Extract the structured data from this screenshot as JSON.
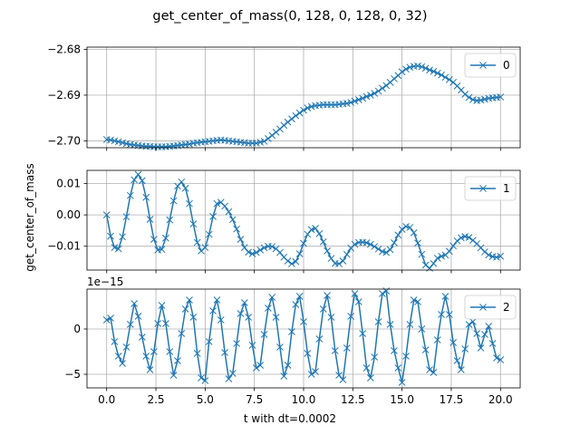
{
  "chart_data": {
    "type": "line",
    "title": "get_center_of_mass(0, 128, 0, 128, 0, 32)",
    "xlabel": "t with dt=0.0002",
    "ylabel": "get_center_of_mass",
    "xlim": [
      -1.0,
      21.0
    ],
    "grid": true,
    "legend_position": "top-right",
    "line_color": "#1f77b4",
    "marker": "x",
    "x_start": 0.0,
    "x_end": 20.0,
    "x_step": 0.2,
    "panels": [
      {
        "series_name": "0",
        "ylim": [
          -2.7015,
          -2.6795
        ],
        "yticks": [
          -2.7,
          -2.69,
          -2.68
        ],
        "ytick_labels": [
          "−2.70",
          "−2.69",
          "−2.68"
        ],
        "offset_text": "",
        "values": [
          -2.6997,
          -2.6998,
          -2.7,
          -2.7002,
          -2.7004,
          -2.7006,
          -2.7008,
          -2.7009,
          -2.701,
          -2.7011,
          -2.7012,
          -2.7012,
          -2.7013,
          -2.7013,
          -2.7013,
          -2.7013,
          -2.7012,
          -2.7011,
          -2.701,
          -2.7009,
          -2.7008,
          -2.7007,
          -2.7005,
          -2.7004,
          -2.7003,
          -2.7002,
          -2.7001,
          -2.7,
          -2.6999,
          -2.6998,
          -2.6999,
          -2.7,
          -2.7001,
          -2.7002,
          -2.7003,
          -2.7004,
          -2.7005,
          -2.7005,
          -2.7005,
          -2.7003,
          -2.7001,
          -2.6995,
          -2.6988,
          -2.6981,
          -2.6974,
          -2.6966,
          -2.6959,
          -2.6952,
          -2.6945,
          -2.6939,
          -2.6933,
          -2.6928,
          -2.6925,
          -2.6923,
          -2.6922,
          -2.6921,
          -2.6921,
          -2.6921,
          -2.6921,
          -2.692,
          -2.6919,
          -2.6918,
          -2.6916,
          -2.6913,
          -2.691,
          -2.6907,
          -2.6903,
          -2.69,
          -2.6896,
          -2.6891,
          -2.6885,
          -2.6879,
          -2.6872,
          -2.6864,
          -2.6857,
          -2.6849,
          -2.6843,
          -2.6839,
          -2.6837,
          -2.6836,
          -2.6838,
          -2.6841,
          -2.6845,
          -2.6848,
          -2.6852,
          -2.6856,
          -2.6861,
          -2.6866,
          -2.6872,
          -2.688,
          -2.6889,
          -2.6898,
          -2.6905,
          -2.691,
          -2.6912,
          -2.6911,
          -2.6909,
          -2.6907,
          -2.6906,
          -2.6905,
          -2.6904
        ]
      },
      {
        "series_name": "1",
        "ylim": [
          -0.0176,
          0.0142
        ],
        "yticks": [
          -0.01,
          0.0,
          0.01
        ],
        "ytick_labels": [
          "−0.01",
          "0.00",
          "0.01"
        ],
        "offset_text": "",
        "values": [
          0.0,
          -0.0068,
          -0.0104,
          -0.0108,
          -0.007,
          -0.0006,
          0.0062,
          0.0112,
          0.0129,
          0.0109,
          0.0056,
          -0.0014,
          -0.0078,
          -0.0112,
          -0.011,
          -0.0074,
          -0.0016,
          0.0045,
          0.0092,
          0.0105,
          0.0085,
          0.0036,
          -0.0029,
          -0.0088,
          -0.0115,
          -0.0104,
          -0.0062,
          -0.0005,
          0.0036,
          0.004,
          0.0028,
          0.001,
          -0.0015,
          -0.0045,
          -0.0078,
          -0.0104,
          -0.0119,
          -0.0124,
          -0.012,
          -0.0112,
          -0.0105,
          -0.01,
          -0.0101,
          -0.0108,
          -0.012,
          -0.0135,
          -0.0147,
          -0.0156,
          -0.0149,
          -0.0124,
          -0.0091,
          -0.0062,
          -0.0047,
          -0.0043,
          -0.006,
          -0.0086,
          -0.0115,
          -0.0139,
          -0.0155,
          -0.0156,
          -0.0147,
          -0.0126,
          -0.0106,
          -0.0094,
          -0.0088,
          -0.0087,
          -0.0089,
          -0.0094,
          -0.0101,
          -0.0109,
          -0.0117,
          -0.012,
          -0.0111,
          -0.0089,
          -0.0064,
          -0.0046,
          -0.0037,
          -0.004,
          -0.0057,
          -0.009,
          -0.0126,
          -0.016,
          -0.017,
          -0.0155,
          -0.0138,
          -0.0132,
          -0.0128,
          -0.0116,
          -0.0099,
          -0.0083,
          -0.0073,
          -0.0069,
          -0.0072,
          -0.0081,
          -0.0092,
          -0.0105,
          -0.0118,
          -0.0128,
          -0.0133,
          -0.0135,
          -0.0132
        ]
      },
      {
        "series_name": "2",
        "ylim": [
          -6.5,
          4.4
        ],
        "yticks": [
          -5,
          0
        ],
        "ytick_labels": [
          "−5",
          "0"
        ],
        "offset_text": "1e−15",
        "values": [
          1.0,
          1.2,
          -1.4,
          -3.0,
          -3.8,
          -2.0,
          0.5,
          2.8,
          1.4,
          -0.9,
          -3.0,
          -4.5,
          -2.5,
          0.6,
          2.6,
          0.6,
          -2.5,
          -5.1,
          -3.5,
          -0.5,
          2.2,
          3.2,
          1.3,
          -2.7,
          -5.4,
          -5.7,
          -1.4,
          2.0,
          3.2,
          1.0,
          -2.6,
          -5.5,
          -4.9,
          -1.6,
          1.7,
          2.9,
          1.3,
          -1.8,
          -4.3,
          -4.0,
          -0.6,
          2.3,
          3.5,
          1.3,
          -2.0,
          -5.2,
          -4.0,
          -0.3,
          2.7,
          3.6,
          0.8,
          -2.7,
          -5.0,
          -4.7,
          -1.1,
          2.2,
          3.7,
          1.3,
          -2.4,
          -5.1,
          -5.6,
          -2.1,
          1.4,
          3.9,
          3.0,
          -0.5,
          -4.3,
          -5.4,
          -3.1,
          0.8,
          3.9,
          4.2,
          0.5,
          -2.4,
          -4.3,
          -5.9,
          -3.0,
          0.5,
          3.2,
          3.0,
          0.0,
          -2.3,
          -4.5,
          -4.8,
          -1.2,
          1.6,
          3.6,
          1.6,
          -1.5,
          -3.5,
          -4.5,
          -2.2,
          0.5,
          0.8,
          -0.5,
          -2.1,
          -0.6,
          0.3,
          -1.6,
          -3.2,
          -3.4
        ]
      }
    ],
    "xticks": [
      0.0,
      2.5,
      5.0,
      7.5,
      10.0,
      12.5,
      15.0,
      17.5,
      20.0
    ],
    "xtick_labels": [
      "0.0",
      "2.5",
      "5.0",
      "7.5",
      "10.0",
      "12.5",
      "15.0",
      "17.5",
      "20.0"
    ]
  }
}
